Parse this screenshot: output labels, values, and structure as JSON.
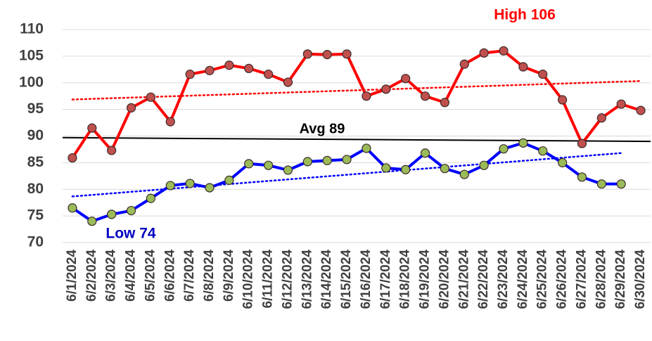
{
  "chart_data": {
    "type": "line",
    "categories": [
      "6/1/2024",
      "6/2/2024",
      "6/3/2024",
      "6/4/2024",
      "6/5/2024",
      "6/6/2024",
      "6/7/2024",
      "6/8/2024",
      "6/9/2024",
      "6/10/2024",
      "6/11/2024",
      "6/12/2024",
      "6/13/2024",
      "6/14/2024",
      "6/15/2024",
      "6/16/2024",
      "6/17/2024",
      "6/18/2024",
      "6/19/2024",
      "6/20/2024",
      "6/21/2024",
      "6/22/2024",
      "6/23/2024",
      "6/24/2024",
      "6/25/2024",
      "6/26/2024",
      "6/27/2024",
      "6/28/2024",
      "6/29/2024",
      "6/30/2024"
    ],
    "series": [
      {
        "color": "#ff0000",
        "marker_color": "#c0504d",
        "values": [
          85.9,
          91.5,
          87.3,
          95.3,
          97.3,
          92.7,
          101.6,
          102.3,
          103.3,
          102.7,
          101.6,
          100.1,
          105.4,
          105.3,
          105.4,
          97.5,
          98.8,
          100.8,
          97.5,
          96.3,
          103.5,
          105.6,
          106,
          103,
          101.6,
          96.8,
          88.6,
          93.4,
          96,
          94.8
        ]
      },
      {
        "color": "#0000ff",
        "marker_color": "#9bbb59",
        "values": [
          76.5,
          74,
          75.3,
          76,
          78.3,
          80.7,
          81.1,
          80.3,
          81.7,
          84.8,
          84.5,
          83.6,
          85.2,
          85.4,
          85.6,
          87.7,
          84,
          83.7,
          86.8,
          83.9,
          82.8,
          84.5,
          87.6,
          88.7,
          87.2,
          85,
          82.3,
          81,
          81,
          null
        ]
      }
    ],
    "avg_line": {
      "label": "Avg 89",
      "values": [
        89.7,
        89.0
      ]
    },
    "annotations": [
      {
        "text": "High 106",
        "color": "#ff0000"
      },
      {
        "text": "Low 74",
        "color": "#0000c0"
      }
    ],
    "ylim": [
      70,
      110
    ],
    "yticks": [
      70,
      75,
      80,
      85,
      90,
      95,
      100,
      105,
      110
    ],
    "grid": true,
    "trendlines": true
  }
}
